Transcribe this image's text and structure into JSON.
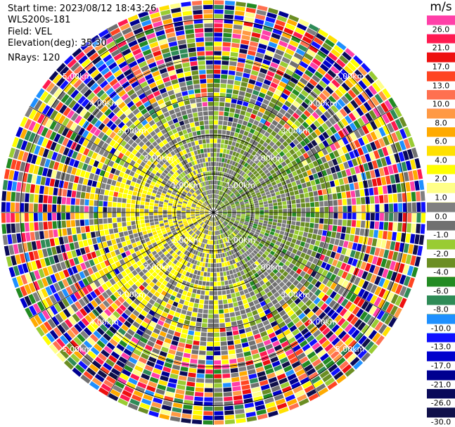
{
  "info": {
    "start_time": "Start time: 2023/08/12 18:43:26",
    "instrument": "WLS200s-181",
    "field": "Field: VEL",
    "elevation": "Elevation(deg): 35.30",
    "nrays": "NRays: 120"
  },
  "colorbar": {
    "unit": "m/s",
    "entries": [
      {
        "label": "",
        "color": "#ff3fa8"
      },
      {
        "label": "26.0",
        "color": "#ff3fa8"
      },
      {
        "label": "",
        "color": "#ff1a50"
      },
      {
        "label": "21.0",
        "color": "#ff1a50"
      },
      {
        "label": "",
        "color": "#ee1010"
      },
      {
        "label": "17.0",
        "color": "#ee1010"
      },
      {
        "label": "",
        "color": "#ff4422"
      },
      {
        "label": "13.0",
        "color": "#ff4422"
      },
      {
        "label": "",
        "color": "#ff7050"
      },
      {
        "label": "10.0",
        "color": "#ff7050"
      },
      {
        "label": "",
        "color": "#ff9944"
      },
      {
        "label": "8.0",
        "color": "#ff9944"
      },
      {
        "label": "",
        "color": "#ffaa00"
      },
      {
        "label": "6.0",
        "color": "#ffaa00"
      },
      {
        "label": "",
        "color": "#ffe000"
      },
      {
        "label": "4.0",
        "color": "#ffe000"
      },
      {
        "label": "",
        "color": "#ffff00"
      },
      {
        "label": "2.0",
        "color": "#ffff00"
      },
      {
        "label": "",
        "color": "#ffff88"
      },
      {
        "label": "1.0",
        "color": "#ffff88"
      },
      {
        "label": "",
        "color": "#7f7f80"
      },
      {
        "label": "0.0",
        "color": "#7f7f80"
      },
      {
        "label": "",
        "color": "#707070"
      },
      {
        "label": "-1.0",
        "color": "#707070"
      },
      {
        "label": "",
        "color": "#99cc33"
      },
      {
        "label": "-2.0",
        "color": "#99cc33"
      },
      {
        "label": "",
        "color": "#6b8e23"
      },
      {
        "label": "-4.0",
        "color": "#6b8e23"
      },
      {
        "label": "",
        "color": "#228b22"
      },
      {
        "label": "-6.0",
        "color": "#228b22"
      },
      {
        "label": "",
        "color": "#2e8b57"
      },
      {
        "label": "-8.0",
        "color": "#2e8b57"
      },
      {
        "label": "",
        "color": "#1e90ff"
      },
      {
        "label": "-10.0",
        "color": "#1e90ff"
      },
      {
        "label": "",
        "color": "#1010ff"
      },
      {
        "label": "-13.0",
        "color": "#1010ff"
      },
      {
        "label": "",
        "color": "#0000cc"
      },
      {
        "label": "-17.0",
        "color": "#0000cc"
      },
      {
        "label": "",
        "color": "#000090"
      },
      {
        "label": "-21.0",
        "color": "#000090"
      },
      {
        "label": "",
        "color": "#0a0a5a"
      },
      {
        "label": "-26.0",
        "color": "#0a0a5a"
      },
      {
        "label": "",
        "color": "#10104a"
      },
      {
        "label": "-30.0",
        "color": "#10104a"
      }
    ]
  },
  "range_rings": {
    "labels": [
      "1.00km",
      "2.00km",
      "3.00km",
      "4.00km",
      "5.00km"
    ]
  },
  "map": {
    "nrays": 120,
    "ngates": 46,
    "max_range_km": 5.5,
    "ring_range_km": [
      1,
      2,
      3,
      4,
      5
    ]
  }
}
